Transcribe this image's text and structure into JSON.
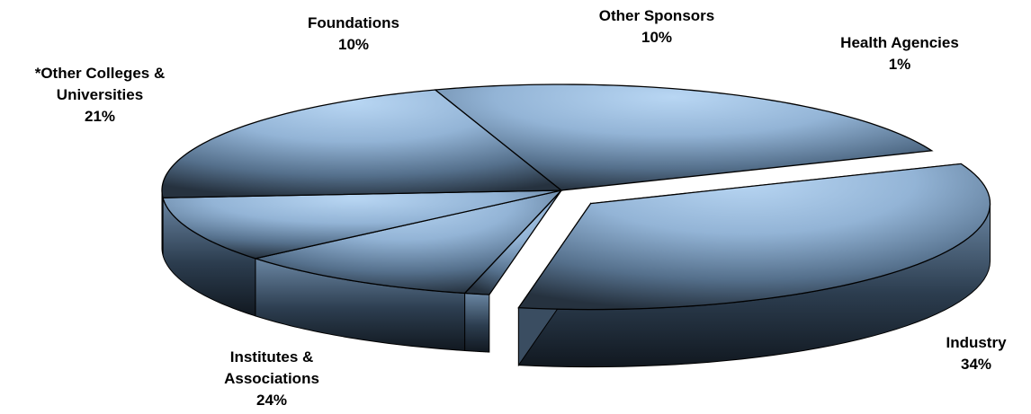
{
  "chart_data": {
    "type": "pie",
    "style": "3d-exploded",
    "slices": [
      {
        "label": "Industry",
        "value": 34,
        "pct_text": "34%",
        "exploded": true
      },
      {
        "label": "Health Agencies",
        "value": 1,
        "pct_text": "1%",
        "exploded": false
      },
      {
        "label": "Other Sponsors",
        "value": 10,
        "pct_text": "10%",
        "exploded": false
      },
      {
        "label": "Foundations",
        "value": 10,
        "pct_text": "10%",
        "exploded": false
      },
      {
        "label_lines": [
          "*Other Colleges &",
          "Universities"
        ],
        "value": 21,
        "pct_text": "21%",
        "exploded": false
      },
      {
        "label_lines": [
          "Institutes &",
          "Associations"
        ],
        "value": 24,
        "pct_text": "24%",
        "exploded": false
      }
    ],
    "colors": {
      "top": "#a9c9ea",
      "mid": "#6a8aaa",
      "dark": "#1e2b38",
      "edge": "#000000"
    }
  }
}
